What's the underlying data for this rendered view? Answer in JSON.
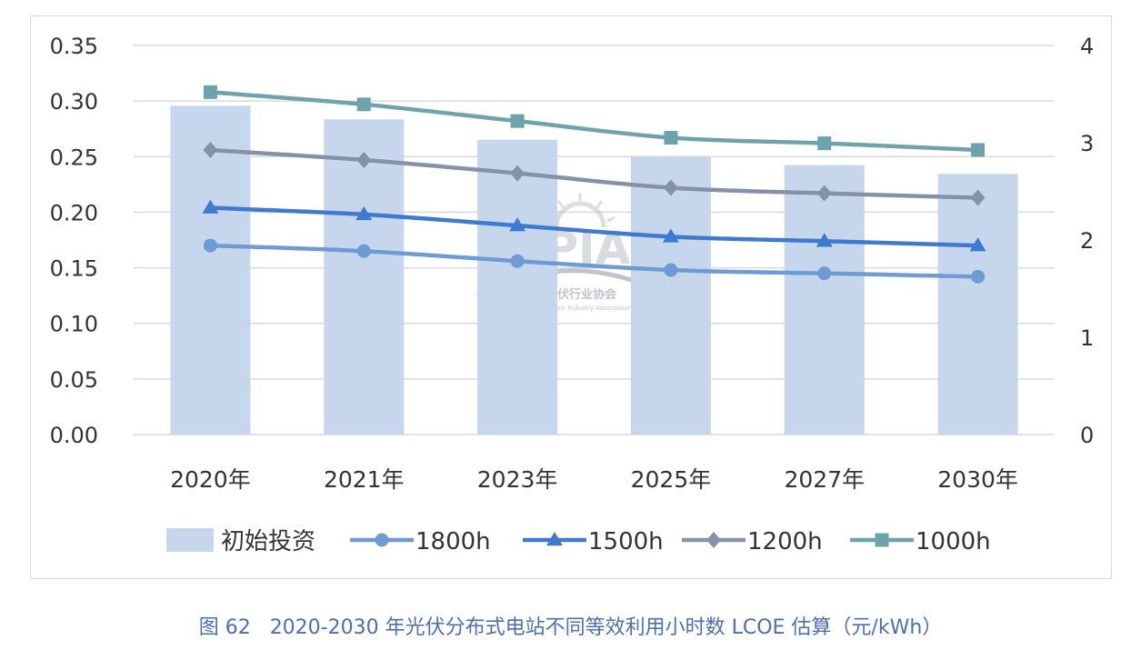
{
  "chart_data": {
    "type": "bar",
    "categories": [
      "2020年",
      "2021年",
      "2023年",
      "2025年",
      "2027年",
      "2030年"
    ],
    "left_axis": {
      "ylim": [
        0,
        0.35
      ],
      "ticks": [
        "0.00",
        "0.05",
        "0.10",
        "0.15",
        "0.20",
        "0.25",
        "0.30",
        "0.35"
      ]
    },
    "right_axis": {
      "ylim": [
        0,
        4
      ],
      "ticks": [
        "0",
        "1",
        "2",
        "3",
        "4"
      ]
    },
    "bar_series": {
      "name": "初始投资",
      "axis": "right",
      "color": "#c6d6ec",
      "values": [
        3.38,
        3.24,
        3.03,
        2.85,
        2.77,
        2.68
      ]
    },
    "line_series": [
      {
        "name": "1800h",
        "marker": "circle",
        "color": "#6f9bd4",
        "values": [
          0.17,
          0.165,
          0.156,
          0.148,
          0.145,
          0.142
        ]
      },
      {
        "name": "1500h",
        "marker": "triangle",
        "color": "#3e7ad0",
        "values": [
          0.204,
          0.198,
          0.188,
          0.178,
          0.174,
          0.17
        ]
      },
      {
        "name": "1200h",
        "marker": "diamond",
        "color": "#8591a9",
        "values": [
          0.256,
          0.247,
          0.235,
          0.222,
          0.217,
          0.213
        ]
      },
      {
        "name": "1000h",
        "marker": "square",
        "color": "#6ea3ab",
        "values": [
          0.308,
          0.297,
          0.282,
          0.267,
          0.262,
          0.256
        ]
      }
    ],
    "grid": true,
    "legend_placement": "bottom"
  },
  "watermark": {
    "logo": "CPIA",
    "cn": "中国光伏行业协会",
    "en": "China Photovoltaic Industry Association"
  },
  "caption": {
    "figure": "图 62",
    "text": "2020-2030 年光伏分布式电站不同等效利用小时数 LCOE 估算（元/kWh）"
  }
}
